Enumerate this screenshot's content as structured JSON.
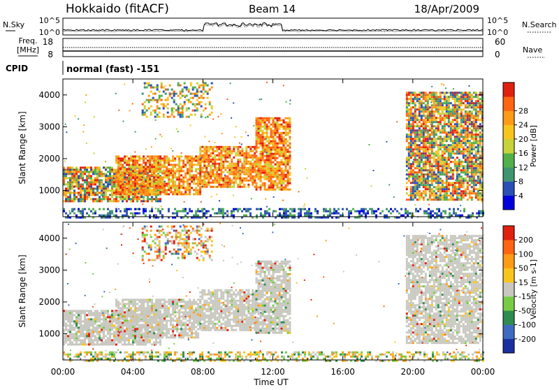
{
  "header": {
    "station": "Hokkaido (fitACF)",
    "beam": "Beam 14",
    "date": "18/Apr/2009"
  },
  "top_panels": {
    "nsky_label": "N.Sky",
    "nsearch_label": "N.Search",
    "noise_ticks": [
      "10^5",
      "10^0"
    ],
    "freq_label": "Freq.",
    "freq_unit": "[MHz]",
    "freq_ticks": [
      "18",
      "8"
    ],
    "nave_label": "Nave",
    "nave_ticks": [
      "60",
      "0"
    ],
    "cpid_label": "CPID",
    "cpid_text": "normal (fast) -151"
  },
  "chart_data": [
    {
      "type": "heatmap",
      "panel": "power",
      "xlabel": "",
      "ylabel": "Slant Range [km]",
      "xlim_hours": [
        0,
        24
      ],
      "ylim_km": [
        180,
        4500
      ],
      "ytick_labels": [
        "1000",
        "2000",
        "3000",
        "4000"
      ],
      "ytick_values": [
        1000,
        2000,
        3000,
        4000
      ],
      "colorbar": {
        "label": "Power [dB]",
        "ticks": [
          4,
          8,
          12,
          16,
          20,
          24,
          28
        ],
        "colors": [
          "#0000dd",
          "#2b4fb5",
          "#3e9670",
          "#52b04a",
          "#c8d23a",
          "#f7c51e",
          "#ff9a16",
          "#ff6412",
          "#e02010"
        ]
      },
      "regions": [
        {
          "t0": 0.0,
          "t1": 5.6,
          "r0": 650,
          "r1": 1750,
          "level": "mixed-high"
        },
        {
          "t0": 3.0,
          "t1": 7.8,
          "r0": 900,
          "r1": 2100,
          "level": "high"
        },
        {
          "t0": 7.8,
          "t1": 11.0,
          "r0": 1100,
          "r1": 2400,
          "level": "high"
        },
        {
          "t0": 11.0,
          "t1": 13.0,
          "r0": 1000,
          "r1": 3300,
          "level": "high"
        },
        {
          "t0": 4.5,
          "t1": 8.5,
          "r0": 3300,
          "r1": 4400,
          "level": "mixed"
        },
        {
          "t0": 19.6,
          "t1": 24.0,
          "r0": 700,
          "r1": 4100,
          "level": "mixed-high"
        },
        {
          "t0": 0.0,
          "t1": 24.0,
          "r0": 180,
          "r1": 450,
          "level": "low"
        }
      ]
    },
    {
      "type": "heatmap",
      "panel": "velocity",
      "xlabel": "Time UT",
      "ylabel": "Slant Range [km]",
      "xlim_hours": [
        0,
        24
      ],
      "xtick_labels": [
        "00:00",
        "04:00",
        "08:00",
        "12:00",
        "16:00",
        "20:00",
        "00:00"
      ],
      "xtick_values": [
        0,
        4,
        8,
        12,
        16,
        20,
        24
      ],
      "ylim_km": [
        180,
        4500
      ],
      "ytick_labels": [
        "1000",
        "2000",
        "3000",
        "4000"
      ],
      "ytick_values": [
        1000,
        2000,
        3000,
        4000
      ],
      "colorbar": {
        "label": "Velocity [m s-1]",
        "ticks": [
          200,
          100,
          50,
          15,
          -15,
          -50,
          -100,
          -200
        ],
        "colors": [
          "#1a2fa0",
          "#3e6ac0",
          "#2e8c50",
          "#77cc44",
          "#c8c8c0",
          "#f7c51e",
          "#ff9a16",
          "#ff6412",
          "#e02010"
        ]
      },
      "regions": [
        {
          "t0": 0.0,
          "t1": 5.6,
          "r0": 650,
          "r1": 1750,
          "level": "gray"
        },
        {
          "t0": 3.0,
          "t1": 7.8,
          "r0": 900,
          "r1": 2100,
          "level": "gray"
        },
        {
          "t0": 7.8,
          "t1": 11.0,
          "r0": 1100,
          "r1": 2400,
          "level": "gray"
        },
        {
          "t0": 11.0,
          "t1": 13.0,
          "r0": 1000,
          "r1": 3300,
          "level": "gray"
        },
        {
          "t0": 4.5,
          "t1": 8.5,
          "r0": 3300,
          "r1": 4400,
          "level": "mixed"
        },
        {
          "t0": 19.6,
          "t1": 24.0,
          "r0": 700,
          "r1": 4100,
          "level": "gray"
        },
        {
          "t0": 0.0,
          "t1": 24.0,
          "r0": 180,
          "r1": 450,
          "level": "low"
        }
      ]
    }
  ]
}
